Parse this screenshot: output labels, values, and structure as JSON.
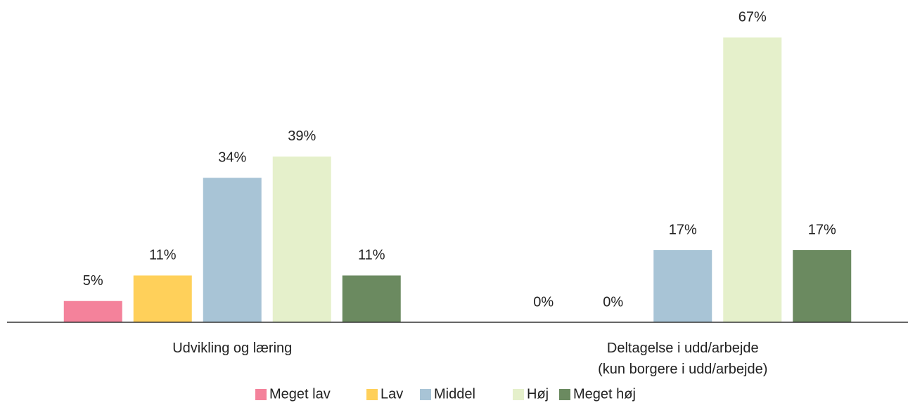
{
  "chart_data": {
    "type": "bar",
    "categories": [
      "Udvikling og læring",
      "Deltagelse i udd/arbejde\n(kun borgere i udd/arbejde)"
    ],
    "series": [
      {
        "name": "Meget lav",
        "color": "#f4829b",
        "values": [
          5,
          0
        ],
        "value_labels": [
          "5%",
          "0%"
        ]
      },
      {
        "name": "Lav",
        "color": "#ffd05a",
        "values": [
          11,
          0
        ],
        "value_labels": [
          "11%",
          "0%"
        ]
      },
      {
        "name": "Middel",
        "color": "#a8c4d6",
        "values": [
          34,
          17
        ],
        "value_labels": [
          "34%",
          "17%"
        ]
      },
      {
        "name": "Høj",
        "color": "#e5f0cb",
        "values": [
          39,
          67
        ],
        "value_labels": [
          "39%",
          "67%"
        ]
      },
      {
        "name": "Meget høj",
        "color": "#6b8a60",
        "values": [
          11,
          17
        ],
        "value_labels": [
          "11%",
          "17%"
        ]
      }
    ],
    "ylim": [
      0,
      75
    ],
    "legend": "bottom"
  }
}
